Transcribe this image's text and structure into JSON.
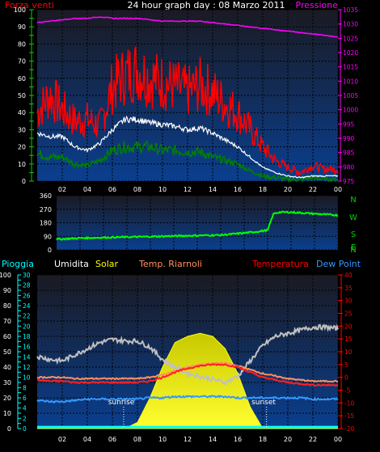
{
  "header": {
    "title": "24 hour graph day : 08 Marzo 2011",
    "left_label": "Forza venti",
    "right_label": "Pressione"
  },
  "bottom_header": {
    "pioggia": "Pioggia",
    "umidita": "Umidita",
    "solar": "Solar",
    "temp_riarnoli": "Temp. Riarnoli",
    "temperatura": "Temperatura",
    "dew_point": "Dew Point"
  },
  "annotations": {
    "sunrise": "sunrise",
    "sunset": "sunset"
  },
  "colors": {
    "background": "#000000",
    "plot_top": "#1a1a22",
    "plot_bottom": "#0a3f8f",
    "grid": "#000000",
    "tick_green": "#00d000",
    "pressure": "#ff00ff",
    "wind_gust": "#ff0000",
    "wind_avg": "#ffffff",
    "wind_low": "#008000",
    "direction": "#00ff00",
    "humidity": "#c0c0c0",
    "solar": "#ffff00",
    "temperature": "#ff2020",
    "temp_riarnoli": "#ff9060",
    "dew_point": "#3399ff",
    "rain": "#00ffff",
    "temp_axis": "#ff0000",
    "rain_axis": "#00ffff"
  },
  "chart_data": [
    {
      "type": "line",
      "name": "wind-pressure",
      "x_ticks": [
        "02",
        "04",
        "06",
        "08",
        "10",
        "12",
        "14",
        "16",
        "18",
        "20",
        "22",
        "00"
      ],
      "y_left": {
        "label": "Forza venti",
        "range": [
          0,
          100
        ],
        "ticks": [
          "0",
          "10",
          "20",
          "30",
          "40",
          "50",
          "60",
          "70",
          "80",
          "90",
          "100"
        ]
      },
      "y_right": {
        "label": "Pressione",
        "range": [
          975,
          1035
        ],
        "ticks": [
          "975",
          "980",
          "985",
          "990",
          "995",
          "1000",
          "1005",
          "1010",
          "1015",
          "1020",
          "1025",
          "1030",
          "1035"
        ]
      },
      "x_hours": [
        0,
        1,
        2,
        3,
        4,
        5,
        6,
        7,
        8,
        9,
        10,
        11,
        12,
        13,
        14,
        15,
        16,
        17,
        18,
        19,
        20,
        21,
        22,
        23,
        24
      ],
      "series": [
        {
          "name": "Pressione",
          "axis": "right",
          "values": [
            1030.5,
            1031,
            1031.5,
            1032,
            1032,
            1032.5,
            1032,
            1032,
            1032,
            1031.5,
            1031,
            1031,
            1031,
            1031,
            1030.5,
            1030,
            1029.5,
            1029,
            1028.5,
            1028,
            1027.5,
            1027,
            1026.5,
            1026,
            1025.5
          ]
        },
        {
          "name": "gust",
          "axis": "left",
          "values": [
            40,
            50,
            42,
            35,
            36,
            32,
            55,
            62,
            65,
            60,
            58,
            55,
            52,
            56,
            52,
            45,
            40,
            30,
            20,
            12,
            8,
            5,
            9,
            7,
            7
          ]
        },
        {
          "name": "average",
          "axis": "left",
          "values": [
            28,
            26,
            26,
            20,
            18,
            22,
            30,
            36,
            36,
            34,
            33,
            32,
            30,
            31,
            28,
            24,
            20,
            14,
            8,
            5,
            3,
            2,
            3,
            3,
            3
          ]
        },
        {
          "name": "minimum",
          "axis": "left",
          "values": [
            16,
            14,
            14,
            10,
            9,
            12,
            18,
            20,
            20,
            20,
            18,
            18,
            17,
            17,
            14,
            12,
            10,
            6,
            3,
            2,
            1,
            1,
            2,
            1,
            1
          ]
        }
      ]
    },
    {
      "type": "line",
      "name": "wind-direction",
      "y_left": {
        "range": [
          0,
          360
        ],
        "ticks": [
          "0",
          "90",
          "180",
          "270",
          "360"
        ]
      },
      "y_right_labels": [
        "N",
        "W",
        "S",
        "E",
        "N"
      ],
      "x_hours": [
        0,
        2,
        4,
        6,
        8,
        10,
        12,
        14,
        16,
        17,
        18,
        18.5,
        19,
        20,
        21,
        22,
        23,
        24
      ],
      "series": [
        {
          "name": "direction",
          "values": [
            70,
            78,
            82,
            85,
            88,
            92,
            95,
            98,
            112,
            120,
            130,
            240,
            250,
            250,
            245,
            240,
            235,
            230
          ]
        }
      ]
    },
    {
      "type": "line",
      "name": "temp-humidity-solar",
      "x_ticks": [
        "02",
        "04",
        "06",
        "08",
        "10",
        "12",
        "14",
        "16",
        "18",
        "20",
        "22",
        "00"
      ],
      "y_left_outer": {
        "label": "Pioggia",
        "range": [
          0,
          100
        ],
        "ticks": [
          "0",
          "10",
          "20",
          "30",
          "40",
          "50",
          "60",
          "70",
          "80",
          "90",
          "100"
        ]
      },
      "y_left_inner": {
        "label": "Solar",
        "range": [
          0,
          30
        ],
        "ticks": [
          "0",
          "2",
          "4",
          "6",
          "8",
          "10",
          "12",
          "14",
          "16",
          "18",
          "20",
          "22",
          "24",
          "26",
          "28",
          "30"
        ]
      },
      "y_right": {
        "label": "Temperatura",
        "range": [
          -20,
          40
        ],
        "ticks": [
          "-20",
          "-15",
          "-10",
          "-5",
          "0",
          "5",
          "10",
          "15",
          "20",
          "25",
          "30",
          "35",
          "40"
        ]
      },
      "x_hours": [
        0,
        1,
        2,
        3,
        4,
        5,
        6,
        7,
        8,
        9,
        10,
        11,
        12,
        13,
        14,
        15,
        16,
        17,
        18,
        19,
        20,
        21,
        22,
        23,
        24
      ],
      "series": [
        {
          "name": "Umidita",
          "axis": "left_outer",
          "values": [
            47,
            45,
            44,
            48,
            52,
            56,
            58,
            57,
            57,
            53,
            45,
            40,
            36,
            34,
            32,
            30,
            34,
            44,
            54,
            60,
            62,
            64,
            66,
            66,
            65
          ]
        },
        {
          "name": "Temperatura",
          "axis": "right",
          "values": [
            -1,
            -1.5,
            -1.5,
            -2,
            -2,
            -2,
            -2,
            -2,
            -2,
            -1.5,
            0,
            2,
            3.5,
            4.5,
            5,
            5,
            4,
            2,
            0,
            -1,
            -2,
            -2.5,
            -3,
            -3,
            -3
          ]
        },
        {
          "name": "Temp. Riarnoli",
          "axis": "right",
          "values": [
            0,
            0,
            0,
            -0.5,
            -0.5,
            -0.5,
            -0.5,
            -0.5,
            -0.5,
            0,
            1,
            2.5,
            4,
            5,
            5.5,
            5.5,
            4.5,
            3,
            1.5,
            0.5,
            -0.5,
            -1,
            -1.5,
            -1.5,
            -1.5
          ]
        },
        {
          "name": "Dew Point",
          "axis": "right",
          "values": [
            -9,
            -9.5,
            -9.5,
            -9,
            -8.5,
            -8.5,
            -8.5,
            -8.5,
            -8.5,
            -8,
            -8,
            -7.5,
            -7.5,
            -7.5,
            -7.5,
            -7.5,
            -8,
            -8,
            -8,
            -8,
            -8,
            -8,
            -8.5,
            -8.5,
            -8.5
          ]
        },
        {
          "name": "Solar",
          "axis": "left_outer",
          "values": [
            0,
            0,
            0,
            0,
            0,
            0,
            0,
            0,
            4,
            20,
            40,
            56,
            60,
            62,
            60,
            52,
            36,
            14,
            0,
            0,
            0,
            0,
            0,
            0,
            0
          ]
        },
        {
          "name": "Pioggia",
          "axis": "left_outer",
          "values": [
            1,
            1,
            1,
            1,
            1,
            1,
            1,
            1,
            1,
            1,
            1,
            1,
            1,
            1,
            1,
            1,
            1,
            1,
            1,
            1,
            1,
            1,
            1,
            1,
            1
          ]
        }
      ],
      "sunrise_hour": 6.9,
      "sunset_hour": 18.3
    }
  ]
}
